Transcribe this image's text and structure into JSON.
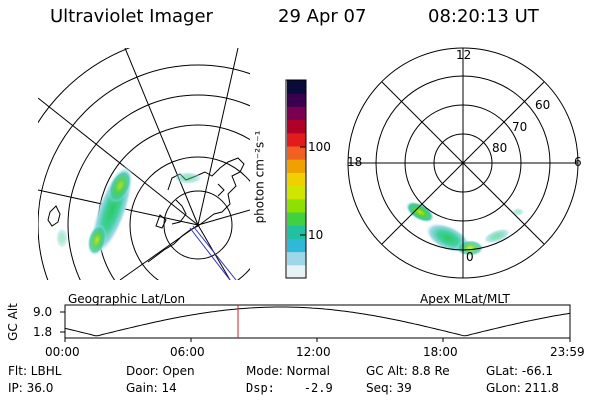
{
  "header": {
    "instrument": "Ultraviolet Imager",
    "date": "29 Apr 07",
    "time": "08:20:13 UT"
  },
  "left_map": {
    "label": "Geographic Lat/Lon"
  },
  "right_map": {
    "label": "Apex MLat/MLT",
    "mlt_labels": {
      "top": "12",
      "left": "18",
      "right": "6",
      "bottom": "0"
    },
    "lat_labels": [
      "60",
      "70",
      "80"
    ]
  },
  "colorbar": {
    "unit_label": "photon cm⁻²s⁻¹",
    "ticks": [
      "100",
      "10"
    ],
    "colors": [
      "#0b0b3a",
      "#3a0050",
      "#7a0050",
      "#b00028",
      "#e21c1c",
      "#f06020",
      "#f0a000",
      "#f0d000",
      "#cfe600",
      "#8ee000",
      "#40d040",
      "#20c0a0",
      "#30b8d8",
      "#9ed8e8",
      "#e6f2f4"
    ]
  },
  "altitude_plot": {
    "ylabel": "GC Alt",
    "yticks": [
      "9.0",
      "1.8"
    ],
    "xticks": [
      "00:00",
      "06:00",
      "12:00",
      "18:00",
      "23:59"
    ],
    "marker_time": "08:20",
    "marker_color": "#d02020"
  },
  "status": {
    "row1": [
      {
        "label": "Flt: LBHL"
      },
      {
        "label": "Door: Open"
      },
      {
        "label": "Mode: Normal"
      },
      {
        "label": "GC Alt: 8.8 Re"
      },
      {
        "label": "GLat: -66.1"
      }
    ],
    "row2": [
      {
        "label": "IP: 36.0"
      },
      {
        "label": "Gain: 14"
      },
      {
        "label": "Dsp:    -2.9"
      },
      {
        "label": "Seq: 39"
      },
      {
        "label": "GLon: 211.8"
      }
    ]
  }
}
